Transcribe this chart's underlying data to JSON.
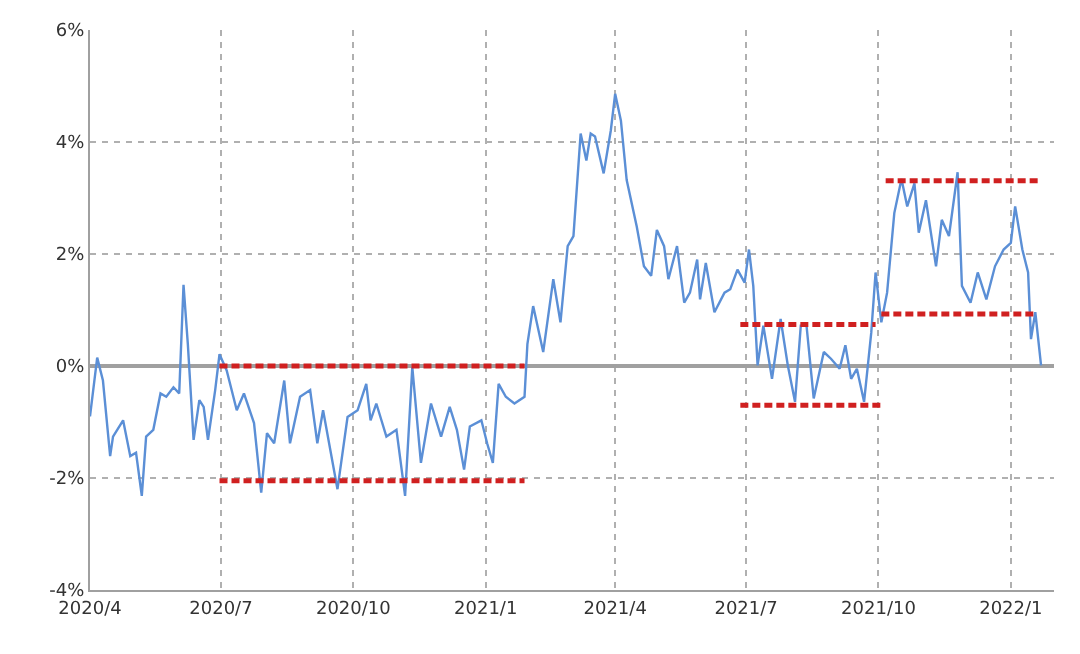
{
  "chart_data": {
    "type": "line",
    "xlim": [
      "2020-04-01",
      "2022-01-31"
    ],
    "xticks": [
      {
        "value": "2020-04-01",
        "label": "2020/4"
      },
      {
        "value": "2020-07-01",
        "label": "2020/7"
      },
      {
        "value": "2020-10-01",
        "label": "2020/10"
      },
      {
        "value": "2021-01-01",
        "label": "2021/1"
      },
      {
        "value": "2021-04-01",
        "label": "2021/4"
      },
      {
        "value": "2021-07-01",
        "label": "2021/7"
      },
      {
        "value": "2021-10-01",
        "label": "2021/10"
      },
      {
        "value": "2022-01-01",
        "label": "2022/1"
      }
    ],
    "ylim": [
      -4,
      6
    ],
    "yticks": [
      {
        "value": -4,
        "label": "-4%"
      },
      {
        "value": -2,
        "label": "-2%"
      },
      {
        "value": 0,
        "label": "0%"
      },
      {
        "value": 2,
        "label": "2%"
      },
      {
        "value": 4,
        "label": "4%"
      },
      {
        "value": 6,
        "label": "6%"
      }
    ],
    "grid": true,
    "series": [
      {
        "color": "#5b8fd6",
        "line_style": "solid",
        "x": [
          "2020-04-01",
          "2020-04-06",
          "2020-04-10",
          "2020-04-15",
          "2020-04-17",
          "2020-04-24",
          "2020-04-29",
          "2020-05-03",
          "2020-05-07",
          "2020-05-10",
          "2020-05-15",
          "2020-05-20",
          "2020-05-24",
          "2020-05-29",
          "2020-06-02",
          "2020-06-05",
          "2020-06-08",
          "2020-06-12",
          "2020-06-16",
          "2020-06-19",
          "2020-06-22",
          "2020-06-27",
          "2020-06-30",
          "2020-07-05",
          "2020-07-12",
          "2020-07-17",
          "2020-07-24",
          "2020-07-29",
          "2020-08-02",
          "2020-08-07",
          "2020-08-14",
          "2020-08-18",
          "2020-08-25",
          "2020-09-01",
          "2020-09-06",
          "2020-09-10",
          "2020-09-20",
          "2020-09-27",
          "2020-10-04",
          "2020-10-10",
          "2020-10-13",
          "2020-10-17",
          "2020-10-24",
          "2020-10-31",
          "2020-11-06",
          "2020-11-11",
          "2020-11-17",
          "2020-11-24",
          "2020-12-01",
          "2020-12-07",
          "2020-12-12",
          "2020-12-17",
          "2020-12-21",
          "2020-12-29",
          "2021-01-02",
          "2021-01-06",
          "2021-01-10",
          "2021-01-15",
          "2021-01-21",
          "2021-01-28",
          "2021-01-30",
          "2021-02-03",
          "2021-02-10",
          "2021-02-17",
          "2021-02-22",
          "2021-02-27",
          "2021-03-03",
          "2021-03-08",
          "2021-03-12",
          "2021-03-15",
          "2021-03-18",
          "2021-03-24",
          "2021-03-29",
          "2021-04-01",
          "2021-04-05",
          "2021-04-09",
          "2021-04-16",
          "2021-04-21",
          "2021-04-26",
          "2021-04-30",
          "2021-05-05",
          "2021-05-08",
          "2021-05-14",
          "2021-05-19",
          "2021-05-23",
          "2021-05-28",
          "2021-05-30",
          "2021-06-03",
          "2021-06-09",
          "2021-06-16",
          "2021-06-20",
          "2021-06-25",
          "2021-06-30",
          "2021-07-03",
          "2021-07-06",
          "2021-07-09",
          "2021-07-13",
          "2021-07-19",
          "2021-07-25",
          "2021-07-30",
          "2021-08-04",
          "2021-08-08",
          "2021-08-12",
          "2021-08-17",
          "2021-08-24",
          "2021-08-29",
          "2021-09-04",
          "2021-09-08",
          "2021-09-12",
          "2021-09-16",
          "2021-09-21",
          "2021-09-26",
          "2021-09-29",
          "2021-10-03",
          "2021-10-07",
          "2021-10-12",
          "2021-10-17",
          "2021-10-21",
          "2021-10-26",
          "2021-10-29",
          "2021-11-03",
          "2021-11-10",
          "2021-11-14",
          "2021-11-19",
          "2021-11-25",
          "2021-11-28",
          "2021-12-04",
          "2021-12-09",
          "2021-12-15",
          "2021-12-21",
          "2021-12-27",
          "2022-01-01",
          "2022-01-04",
          "2022-01-09",
          "2022-01-13",
          "2022-01-15",
          "2022-01-18",
          "2022-01-22"
        ],
        "values": [
          -0.9,
          0.15,
          -0.26,
          -1.61,
          -1.26,
          -0.97,
          -1.61,
          -1.55,
          -2.32,
          -1.26,
          -1.14,
          -0.49,
          -0.55,
          -0.38,
          -0.49,
          1.45,
          0.39,
          -1.32,
          -0.61,
          -0.73,
          -1.32,
          -0.43,
          0.21,
          -0.08,
          -0.79,
          -0.49,
          -1.02,
          -2.26,
          -1.2,
          -1.38,
          -0.26,
          -1.38,
          -0.55,
          -0.43,
          -1.38,
          -0.79,
          -2.2,
          -0.91,
          -0.79,
          -0.32,
          -0.97,
          -0.67,
          -1.26,
          -1.14,
          -2.32,
          -0.02,
          -1.73,
          -0.67,
          -1.26,
          -0.73,
          -1.14,
          -1.85,
          -1.08,
          -0.97,
          -1.38,
          -1.73,
          -0.32,
          -0.55,
          -0.67,
          -0.55,
          0.39,
          1.07,
          0.25,
          1.55,
          0.78,
          2.14,
          2.32,
          4.15,
          3.67,
          4.15,
          4.1,
          3.44,
          4.21,
          4.86,
          4.38,
          3.32,
          2.49,
          1.78,
          1.61,
          2.43,
          2.14,
          1.55,
          2.14,
          1.13,
          1.31,
          1.9,
          1.19,
          1.84,
          0.96,
          1.31,
          1.37,
          1.72,
          1.49,
          2.08,
          1.43,
          0.01,
          0.72,
          -0.23,
          0.84,
          0.01,
          -0.64,
          0.72,
          0.72,
          -0.58,
          0.25,
          0.13,
          -0.05,
          0.37,
          -0.23,
          -0.05,
          -0.64,
          0.6,
          1.67,
          0.78,
          1.31,
          2.73,
          3.34,
          2.85,
          3.26,
          2.38,
          2.96,
          1.78,
          2.61,
          2.32,
          3.46,
          1.43,
          1.13,
          1.67,
          1.19,
          1.78,
          2.08,
          2.2,
          2.85,
          2.08,
          1.67,
          0.48,
          0.96,
          0.01
        ]
      },
      {
        "color": "#d02020",
        "line_style": "dashed",
        "x": [
          "2020-06-30",
          "2021-01-28"
        ],
        "values": [
          0,
          0
        ]
      },
      {
        "color": "#d02020",
        "line_style": "dashed",
        "x": [
          "2020-06-30",
          "2021-01-28"
        ],
        "values": [
          -2.05,
          -2.05
        ]
      },
      {
        "color": "#d02020",
        "line_style": "dashed",
        "x": [
          "2021-06-27",
          "2021-09-29"
        ],
        "values": [
          0.74,
          0.74
        ]
      },
      {
        "color": "#d02020",
        "line_style": "dashed",
        "x": [
          "2021-06-27",
          "2021-10-05"
        ],
        "values": [
          -0.7,
          -0.7
        ]
      },
      {
        "color": "#d02020",
        "line_style": "dashed",
        "x": [
          "2021-10-06",
          "2022-01-22"
        ],
        "values": [
          3.31,
          3.31
        ]
      },
      {
        "color": "#d02020",
        "line_style": "dashed",
        "x": [
          "2021-10-03",
          "2022-01-19"
        ],
        "values": [
          0.93,
          0.93
        ]
      }
    ]
  }
}
